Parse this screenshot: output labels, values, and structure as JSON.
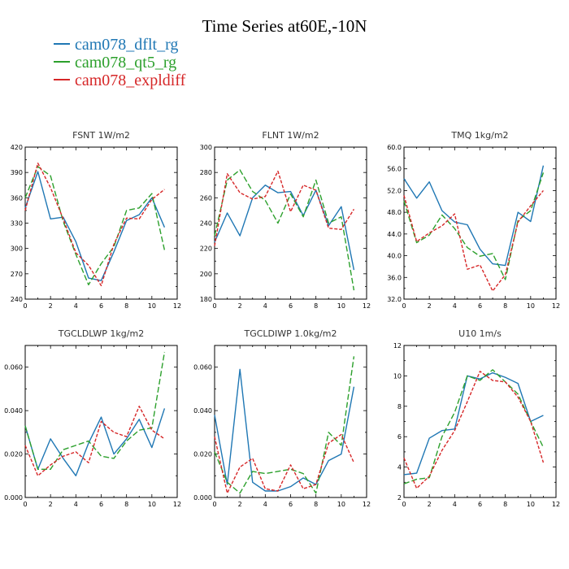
{
  "title": "Time Series at60E,-10N",
  "legend": [
    {
      "label": "cam078_dflt_rg",
      "color": "#1f77b4"
    },
    {
      "label": "cam078_qt5_rg",
      "color": "#2ca02c"
    },
    {
      "label": "cam078_expldiff",
      "color": "#d62728"
    }
  ],
  "chart_data": [
    {
      "type": "line",
      "title": "FSNT   1W/m2",
      "xlabel": "",
      "ylabel": "",
      "xlim": [
        0,
        12
      ],
      "ylim": [
        240,
        420
      ],
      "xticks": [
        0,
        2,
        4,
        6,
        8,
        10,
        12
      ],
      "yticks": [
        240,
        270,
        300,
        330,
        360,
        390,
        420
      ],
      "ytick_labels": [
        "240",
        "270",
        "300",
        "330",
        "360",
        "390",
        "420"
      ],
      "x": [
        0,
        1,
        2,
        3,
        4,
        5,
        6,
        7,
        8,
        9,
        10,
        11
      ],
      "series": [
        {
          "name": "cam078_dflt_rg",
          "color": "#1f77b4",
          "dash": "solid",
          "values": [
            348,
            391,
            335,
            337,
            308,
            265,
            262,
            296,
            333,
            340,
            360,
            325
          ]
        },
        {
          "name": "cam078_qt5_rg",
          "color": "#2ca02c",
          "dash": "dashed",
          "values": [
            360,
            397,
            386,
            332,
            293,
            257,
            282,
            302,
            345,
            348,
            365,
            298
          ]
        },
        {
          "name": "cam078_expldiff",
          "color": "#d62728",
          "dash": "dotted",
          "values": [
            345,
            401,
            372,
            335,
            295,
            280,
            256,
            305,
            336,
            335,
            358,
            370
          ]
        }
      ]
    },
    {
      "type": "line",
      "title": "FLNT   1W/m2",
      "xlabel": "",
      "ylabel": "",
      "xlim": [
        0,
        12
      ],
      "ylim": [
        180,
        300
      ],
      "xticks": [
        0,
        2,
        4,
        6,
        8,
        10,
        12
      ],
      "yticks": [
        180,
        200,
        220,
        240,
        260,
        280,
        300
      ],
      "ytick_labels": [
        "180",
        "200",
        "220",
        "240",
        "260",
        "280",
        "300"
      ],
      "x": [
        0,
        1,
        2,
        3,
        4,
        5,
        6,
        7,
        8,
        9,
        10,
        11
      ],
      "series": [
        {
          "name": "cam078_dflt_rg",
          "color": "#1f77b4",
          "dash": "solid",
          "values": [
            225,
            248,
            230,
            260,
            270,
            264,
            265,
            246,
            266,
            238,
            253,
            203
          ]
        },
        {
          "name": "cam078_qt5_rg",
          "color": "#2ca02c",
          "dash": "dashed",
          "values": [
            230,
            274,
            282,
            265,
            258,
            240,
            263,
            245,
            274,
            240,
            245,
            187
          ]
        },
        {
          "name": "cam078_expldiff",
          "color": "#d62728",
          "dash": "dotted",
          "values": [
            222,
            279,
            264,
            259,
            261,
            281,
            249,
            270,
            266,
            236,
            235,
            251
          ]
        }
      ]
    },
    {
      "type": "line",
      "title": "TMQ   1kg/m2",
      "xlabel": "",
      "ylabel": "",
      "xlim": [
        0,
        12
      ],
      "ylim": [
        32,
        60
      ],
      "xticks": [
        0,
        2,
        4,
        6,
        8,
        10,
        12
      ],
      "yticks": [
        32,
        36,
        40,
        44,
        48,
        52,
        56,
        60
      ],
      "ytick_labels": [
        "32.0",
        "36.0",
        "40.0",
        "44.0",
        "48.0",
        "52.0",
        "56.0",
        "60.0"
      ],
      "x": [
        0,
        1,
        2,
        3,
        4,
        5,
        6,
        7,
        8,
        9,
        10,
        11
      ],
      "series": [
        {
          "name": "cam078_dflt_rg",
          "color": "#1f77b4",
          "dash": "solid",
          "values": [
            54.2,
            50.6,
            53.6,
            48.3,
            46.2,
            45.7,
            41.2,
            38.5,
            38.2,
            48.0,
            46.3,
            56.6
          ]
        },
        {
          "name": "cam078_qt5_rg",
          "color": "#2ca02c",
          "dash": "dashed",
          "values": [
            50.1,
            42.4,
            43.8,
            47.5,
            45.0,
            41.5,
            39.9,
            40.4,
            35.6,
            46.5,
            48.3,
            55.3
          ]
        },
        {
          "name": "cam078_expldiff",
          "color": "#d62728",
          "dash": "dotted",
          "values": [
            51.1,
            42.6,
            44.2,
            45.5,
            47.7,
            37.5,
            38.3,
            33.5,
            36.5,
            46.2,
            49.2,
            52.0
          ]
        }
      ]
    },
    {
      "type": "line",
      "title": "TGCLDLWP   1kg/m2",
      "xlabel": "",
      "ylabel": "",
      "xlim": [
        0,
        12
      ],
      "ylim": [
        0.0,
        0.07
      ],
      "xticks": [
        0,
        2,
        4,
        6,
        8,
        10,
        12
      ],
      "yticks": [
        0.0,
        0.02,
        0.04,
        0.06
      ],
      "ytick_labels": [
        "0.000",
        "0.020",
        "0.040",
        "0.060"
      ],
      "x": [
        0,
        1,
        2,
        3,
        4,
        5,
        6,
        7,
        8,
        9,
        10,
        11
      ],
      "series": [
        {
          "name": "cam078_dflt_rg",
          "color": "#1f77b4",
          "dash": "solid",
          "values": [
            0.033,
            0.013,
            0.027,
            0.018,
            0.01,
            0.025,
            0.037,
            0.02,
            0.027,
            0.036,
            0.023,
            0.041
          ]
        },
        {
          "name": "cam078_qt5_rg",
          "color": "#2ca02c",
          "dash": "dashed",
          "values": [
            0.033,
            0.013,
            0.013,
            0.022,
            0.024,
            0.026,
            0.019,
            0.018,
            0.026,
            0.031,
            0.032,
            0.067
          ]
        },
        {
          "name": "cam078_expldiff",
          "color": "#d62728",
          "dash": "dotted",
          "values": [
            0.024,
            0.01,
            0.015,
            0.019,
            0.021,
            0.016,
            0.035,
            0.03,
            0.028,
            0.042,
            0.031,
            0.027
          ]
        }
      ]
    },
    {
      "type": "line",
      "title": "TGCLDIWP   1.0kg/m2",
      "xlabel": "",
      "ylabel": "",
      "xlim": [
        0,
        12
      ],
      "ylim": [
        0.0,
        0.07
      ],
      "xticks": [
        0,
        2,
        4,
        6,
        8,
        10,
        12
      ],
      "yticks": [
        0.0,
        0.02,
        0.04,
        0.06
      ],
      "ytick_labels": [
        "0.000",
        "0.020",
        "0.040",
        "0.060"
      ],
      "x": [
        0,
        1,
        2,
        3,
        4,
        5,
        6,
        7,
        8,
        9,
        10,
        11
      ],
      "series": [
        {
          "name": "cam078_dflt_rg",
          "color": "#1f77b4",
          "dash": "solid",
          "values": [
            0.038,
            0.006,
            0.059,
            0.007,
            0.003,
            0.003,
            0.005,
            0.009,
            0.006,
            0.017,
            0.02,
            0.051
          ]
        },
        {
          "name": "cam078_qt5_rg",
          "color": "#2ca02c",
          "dash": "dashed",
          "values": [
            0.021,
            0.007,
            0.002,
            0.012,
            0.011,
            0.012,
            0.013,
            0.011,
            0.002,
            0.03,
            0.024,
            0.065
          ]
        },
        {
          "name": "cam078_expldiff",
          "color": "#d62728",
          "dash": "dotted",
          "values": [
            0.028,
            0.002,
            0.014,
            0.018,
            0.004,
            0.003,
            0.015,
            0.004,
            0.006,
            0.025,
            0.029,
            0.016
          ]
        }
      ]
    },
    {
      "type": "line",
      "title": "U10   1m/s",
      "xlabel": "",
      "ylabel": "",
      "xlim": [
        0,
        12
      ],
      "ylim": [
        2,
        12
      ],
      "xticks": [
        0,
        2,
        4,
        6,
        8,
        10,
        12
      ],
      "yticks": [
        2,
        4,
        6,
        8,
        10,
        12
      ],
      "ytick_labels": [
        "2",
        "4",
        "6",
        "8",
        "10",
        "12"
      ],
      "x": [
        0,
        1,
        2,
        3,
        4,
        5,
        6,
        7,
        8,
        9,
        10,
        11
      ],
      "series": [
        {
          "name": "cam078_dflt_rg",
          "color": "#1f77b4",
          "dash": "solid",
          "values": [
            3.5,
            3.6,
            5.9,
            6.4,
            6.5,
            10.0,
            9.8,
            10.2,
            9.9,
            9.5,
            7.0,
            7.4
          ]
        },
        {
          "name": "cam078_qt5_rg",
          "color": "#2ca02c",
          "dash": "dashed",
          "values": [
            2.9,
            3.2,
            3.3,
            6.0,
            7.6,
            10.0,
            9.7,
            10.4,
            9.6,
            8.8,
            7.0,
            5.3
          ]
        },
        {
          "name": "cam078_expldiff",
          "color": "#d62728",
          "dash": "dotted",
          "values": [
            4.6,
            2.6,
            3.4,
            5.1,
            6.4,
            8.3,
            10.3,
            9.7,
            9.6,
            8.6,
            7.0,
            4.3
          ]
        }
      ]
    }
  ]
}
